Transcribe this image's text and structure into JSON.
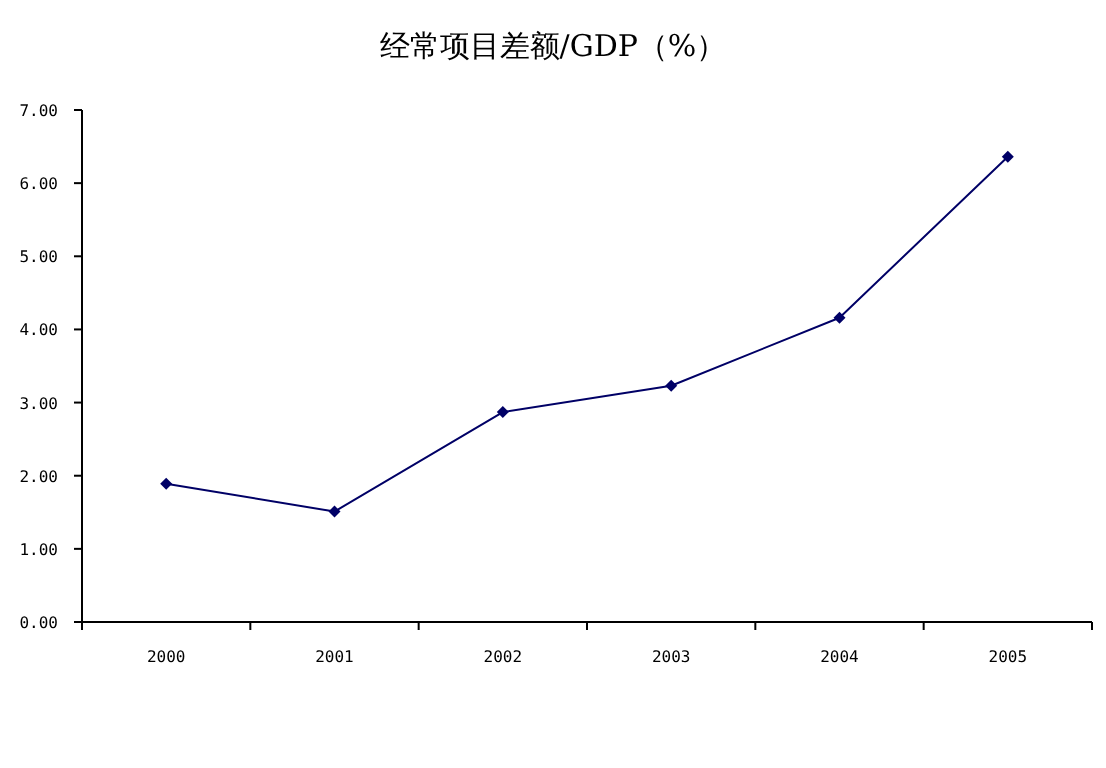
{
  "chart_data": {
    "type": "line",
    "title": "经常项目差额/GDP（%）",
    "categories": [
      "2000",
      "2001",
      "2002",
      "2003",
      "2004",
      "2005"
    ],
    "series": [
      {
        "color": "#000066",
        "values": [
          1.89,
          1.51,
          2.87,
          3.23,
          4.16,
          6.36
        ]
      }
    ],
    "ylim": [
      0,
      7
    ],
    "yticks": [
      {
        "value": 0,
        "label": "0.00"
      },
      {
        "value": 1,
        "label": "1.00"
      },
      {
        "value": 2,
        "label": "2.00"
      },
      {
        "value": 3,
        "label": "3.00"
      },
      {
        "value": 4,
        "label": "4.00"
      },
      {
        "value": 5,
        "label": "5.00"
      },
      {
        "value": 6,
        "label": "6.00"
      },
      {
        "value": 7,
        "label": "7.00"
      }
    ],
    "grid": false,
    "marker": "diamond",
    "line_style": "solid"
  }
}
